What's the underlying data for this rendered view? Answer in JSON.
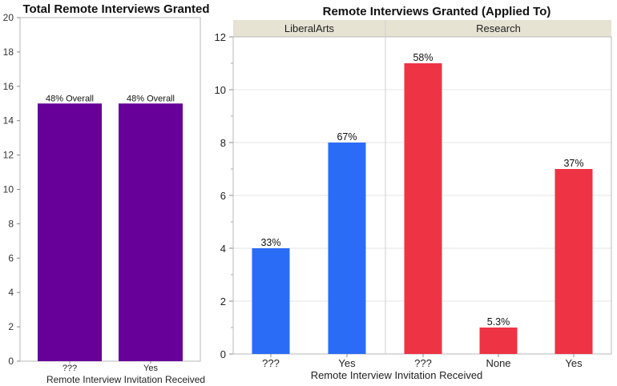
{
  "chart_data": [
    {
      "type": "bar",
      "title": "Total Remote Interviews Granted",
      "xlabel": "Remote Interview Invitation Received",
      "ylabel": "",
      "ylim": [
        0,
        20
      ],
      "yticks": [
        0,
        2,
        4,
        6,
        8,
        10,
        12,
        14,
        16,
        18,
        20
      ],
      "categories": [
        "???",
        "Yes"
      ],
      "values": [
        15,
        15
      ],
      "data_labels": [
        "48% Overall",
        "48% Overall"
      ],
      "bar_color": "#660099",
      "grid": false
    },
    {
      "type": "bar",
      "title": "Remote Interviews Granted (Applied To)",
      "xlabel": "Remote Interview Invitation Received",
      "ylabel": "",
      "ylim": [
        0,
        12
      ],
      "yticks": [
        0,
        2,
        4,
        6,
        8,
        10,
        12
      ],
      "grid": true,
      "facets": [
        {
          "name": "LiberalArts",
          "categories": [
            "???",
            "Yes"
          ],
          "values": [
            4,
            8
          ],
          "data_labels": [
            "33%",
            "67%"
          ],
          "color": "#2b6cf6"
        },
        {
          "name": "Research",
          "categories": [
            "???",
            "None",
            "Yes"
          ],
          "values": [
            11,
            1,
            7
          ],
          "data_labels": [
            "58%",
            "5.3%",
            "37%"
          ],
          "color": "#ee3344"
        }
      ]
    }
  ]
}
